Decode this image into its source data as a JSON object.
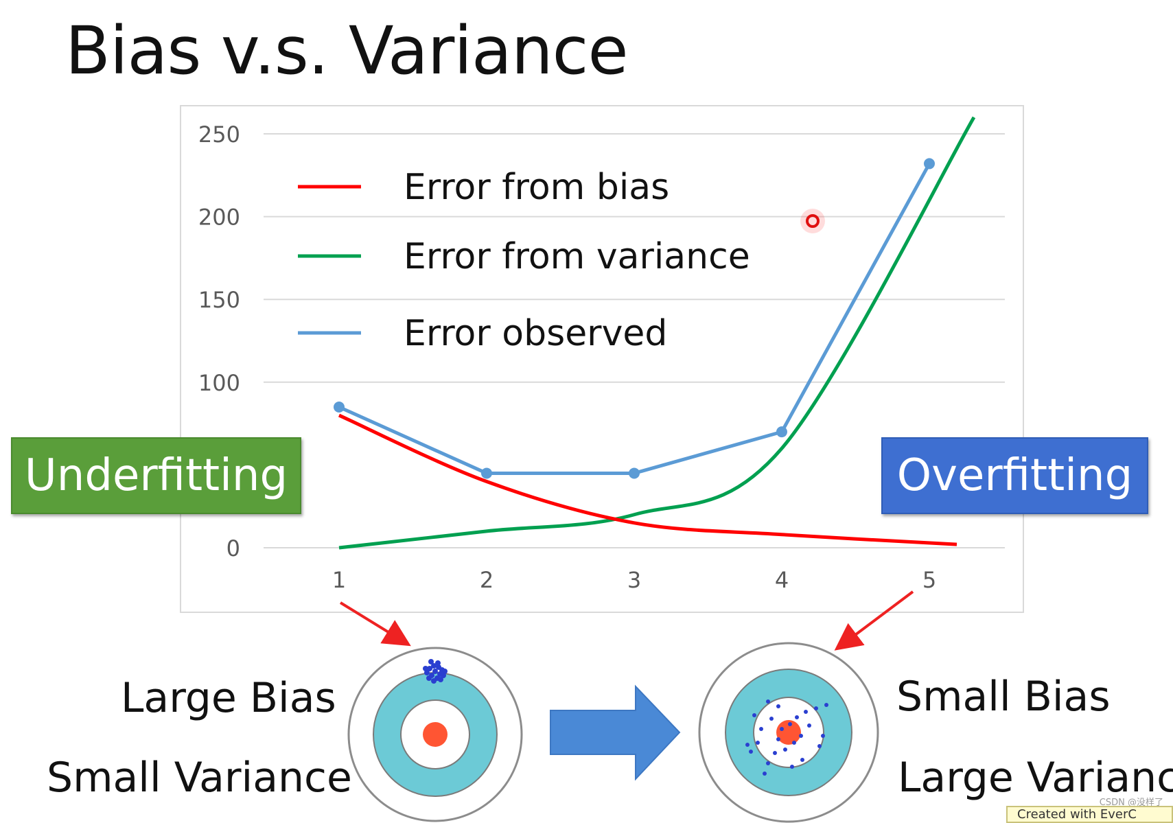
{
  "slide": {
    "title": "Bias v.s. Variance",
    "underfitting_label": "Underfitting",
    "overfitting_label": "Overfitting",
    "left_caption_1": "Large Bias",
    "left_caption_2": "Small Variance",
    "right_caption_1": "Small Bias",
    "right_caption_2": "Large Variance",
    "watermark": "CSDN @没样了",
    "created_with": "Created with EverC"
  },
  "chart_data": {
    "type": "line",
    "x": [
      1,
      2,
      3,
      4,
      5
    ],
    "ylim": [
      0,
      250
    ],
    "yticks": [
      0,
      100,
      150,
      200,
      250
    ],
    "grid": true,
    "legend_position": "top-left",
    "series": [
      {
        "name": "Error from bias",
        "color": "#ff0000",
        "values": [
          80,
          40,
          15,
          8,
          2
        ]
      },
      {
        "name": "Error from variance",
        "color": "#00a050",
        "values": [
          0,
          10,
          20,
          60,
          260
        ]
      },
      {
        "name": "Error observed",
        "color": "#5b9bd5",
        "values": [
          85,
          45,
          45,
          70,
          232
        ]
      }
    ]
  },
  "colors": {
    "target_outer": "#ffffff",
    "target_ring": "#6ccad6",
    "target_center": "#ff5533",
    "arrow_red": "#ee2222",
    "arrow_blue": "#4a89d6"
  }
}
